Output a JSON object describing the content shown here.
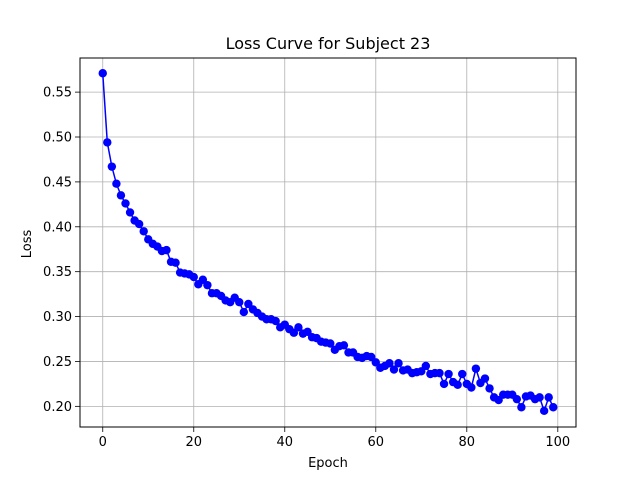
{
  "chart_data": {
    "type": "line",
    "title": "Loss Curve for Subject 23",
    "xlabel": "Epoch",
    "ylabel": "Loss",
    "xlim": [
      -5,
      104
    ],
    "ylim": [
      0.177,
      0.588
    ],
    "xticks": [
      0,
      20,
      40,
      60,
      80,
      100
    ],
    "yticks": [
      0.2,
      0.25,
      0.3,
      0.35,
      0.4,
      0.45,
      0.5,
      0.55
    ],
    "xtick_labels": [
      "0",
      "20",
      "40",
      "60",
      "80",
      "100"
    ],
    "ytick_labels": [
      "0.20",
      "0.25",
      "0.30",
      "0.35",
      "0.40",
      "0.45",
      "0.50",
      "0.55"
    ],
    "grid": true,
    "line_color": "#0000ff",
    "marker": "circle",
    "series": [
      {
        "x": [
          0,
          1,
          2,
          3,
          4,
          5,
          6,
          7,
          8,
          9,
          10,
          11,
          12,
          13,
          14,
          15,
          16,
          17,
          18,
          19,
          20,
          21,
          22,
          23,
          24,
          25,
          26,
          27,
          28,
          29,
          30,
          31,
          32,
          33,
          34,
          35,
          36,
          37,
          38,
          39,
          40,
          41,
          42,
          43,
          44,
          45,
          46,
          47,
          48,
          49,
          50,
          51,
          52,
          53,
          54,
          55,
          56,
          57,
          58,
          59,
          60,
          61,
          62,
          63,
          64,
          65,
          66,
          67,
          68,
          69,
          70,
          71,
          72,
          73,
          74,
          75,
          76,
          77,
          78,
          79,
          80,
          81,
          82,
          83,
          84,
          85,
          86,
          87,
          88,
          89,
          90,
          91,
          92,
          93,
          94,
          95,
          96,
          97,
          98,
          99
        ],
        "values": [
          0.571,
          0.494,
          0.467,
          0.448,
          0.435,
          0.426,
          0.416,
          0.407,
          0.403,
          0.395,
          0.386,
          0.381,
          0.378,
          0.373,
          0.374,
          0.361,
          0.36,
          0.349,
          0.348,
          0.347,
          0.344,
          0.336,
          0.341,
          0.335,
          0.326,
          0.326,
          0.323,
          0.318,
          0.316,
          0.321,
          0.316,
          0.305,
          0.314,
          0.308,
          0.304,
          0.3,
          0.297,
          0.297,
          0.295,
          0.288,
          0.291,
          0.286,
          0.282,
          0.288,
          0.281,
          0.283,
          0.277,
          0.276,
          0.272,
          0.271,
          0.27,
          0.263,
          0.267,
          0.268,
          0.26,
          0.26,
          0.255,
          0.254,
          0.256,
          0.255,
          0.249,
          0.243,
          0.245,
          0.248,
          0.241,
          0.248,
          0.24,
          0.241,
          0.237,
          0.238,
          0.239,
          0.245,
          0.236,
          0.237,
          0.237,
          0.225,
          0.236,
          0.227,
          0.224,
          0.236,
          0.225,
          0.221,
          0.242,
          0.226,
          0.231,
          0.22,
          0.21,
          0.207,
          0.213,
          0.213,
          0.213,
          0.208,
          0.199,
          0.211,
          0.212,
          0.208,
          0.21,
          0.195,
          0.21,
          0.199
        ]
      }
    ]
  }
}
